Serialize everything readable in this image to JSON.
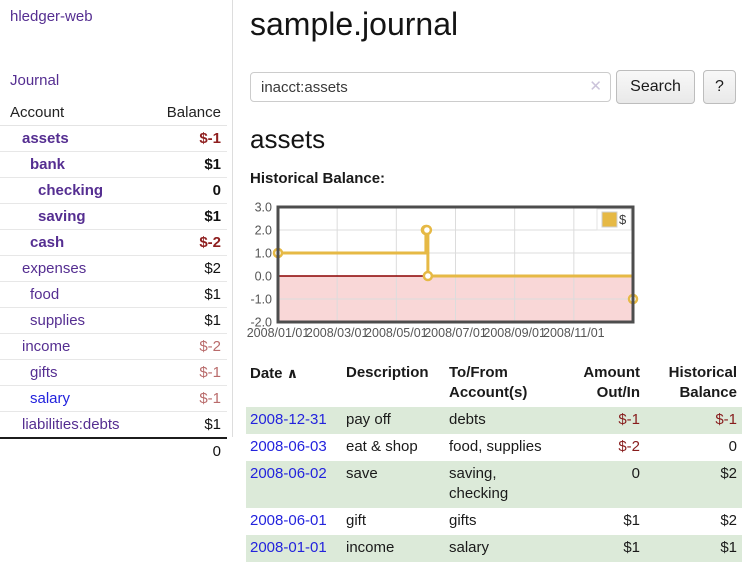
{
  "sidebar": {
    "brand": "hledger-web",
    "nav": {
      "journal": "Journal"
    },
    "accounts_table": {
      "headers": {
        "account": "Account",
        "balance": "Balance"
      },
      "rows": [
        {
          "name": "assets",
          "balance": "$-1"
        },
        {
          "name": "bank",
          "balance": "$1"
        },
        {
          "name": "checking",
          "balance": "0"
        },
        {
          "name": "saving",
          "balance": "$1"
        },
        {
          "name": "cash",
          "balance": "$-2"
        },
        {
          "name": "expenses",
          "balance": "$2"
        },
        {
          "name": "food",
          "balance": "$1"
        },
        {
          "name": "supplies",
          "balance": "$1"
        },
        {
          "name": "income",
          "balance": "$-2"
        },
        {
          "name": "gifts",
          "balance": "$-1"
        },
        {
          "name": "salary",
          "balance": "$-1"
        },
        {
          "name": "liabilities:debts",
          "balance": "$1"
        }
      ],
      "total": "0"
    }
  },
  "main": {
    "title": "sample.journal",
    "search": {
      "value": "inacct:assets",
      "clear_icon": "✕",
      "button": "Search",
      "help_button": "?"
    },
    "account_heading": "assets",
    "chart_label": "Historical Balance:",
    "register_table": {
      "sort_icon": "∧",
      "headers": {
        "date": "Date",
        "description": "Description",
        "accounts": "To/From Account(s)",
        "amount": "Amount Out/In",
        "balance": "Historical Balance"
      },
      "rows": [
        {
          "date": "2008-12-31",
          "description": "pay off",
          "accounts": "debts",
          "amount": "$-1",
          "balance": "$-1"
        },
        {
          "date": "2008-06-03",
          "description": "eat & shop",
          "accounts": "food, supplies",
          "amount": "$-2",
          "balance": "0"
        },
        {
          "date": "2008-06-02",
          "description": "save",
          "accounts": "saving, checking",
          "amount": "0",
          "balance": "$2"
        },
        {
          "date": "2008-06-01",
          "description": "gift",
          "accounts": "gifts",
          "amount": "$1",
          "balance": "$2"
        },
        {
          "date": "2008-01-01",
          "description": "income",
          "accounts": "salary",
          "amount": "$1",
          "balance": "$1"
        }
      ]
    }
  },
  "chart_data": {
    "type": "line",
    "step": true,
    "title": "Historical Balance",
    "xlabel": "",
    "ylabel": "",
    "series": [
      {
        "name": "$",
        "color": "#e6b945",
        "points": [
          {
            "x": "2008-01-01",
            "y": 1
          },
          {
            "x": "2008-06-01",
            "y": 2
          },
          {
            "x": "2008-06-02",
            "y": 2
          },
          {
            "x": "2008-06-03",
            "y": 0
          },
          {
            "x": "2008-12-31",
            "y": -1
          }
        ]
      }
    ],
    "xlim": [
      "2008-01-01",
      "2009-01-01"
    ],
    "ylim": [
      -2,
      3
    ],
    "y_ticks": [
      "3.0",
      "2.0",
      "1.0",
      "0.0",
      "-1.0",
      "-2.0"
    ],
    "x_ticks": [
      {
        "label": "2008/01/01",
        "month": 0
      },
      {
        "label": "2008/03/01",
        "month": 2
      },
      {
        "label": "2008/05/01",
        "month": 4
      },
      {
        "label": "2008/07/01",
        "month": 6
      },
      {
        "label": "2008/09/01",
        "month": 8
      },
      {
        "label": "2008/11/01",
        "month": 10
      }
    ],
    "grid": true,
    "legend": {
      "label": "$",
      "swatch_color": "#e6b945",
      "position": "top-right"
    },
    "colors": {
      "negative_fill": "#f9d7d7",
      "zero_line": "#8b0000",
      "gridline": "#dcdcdc",
      "border": "#4d4d4d",
      "tick_text": "#555555"
    }
  }
}
